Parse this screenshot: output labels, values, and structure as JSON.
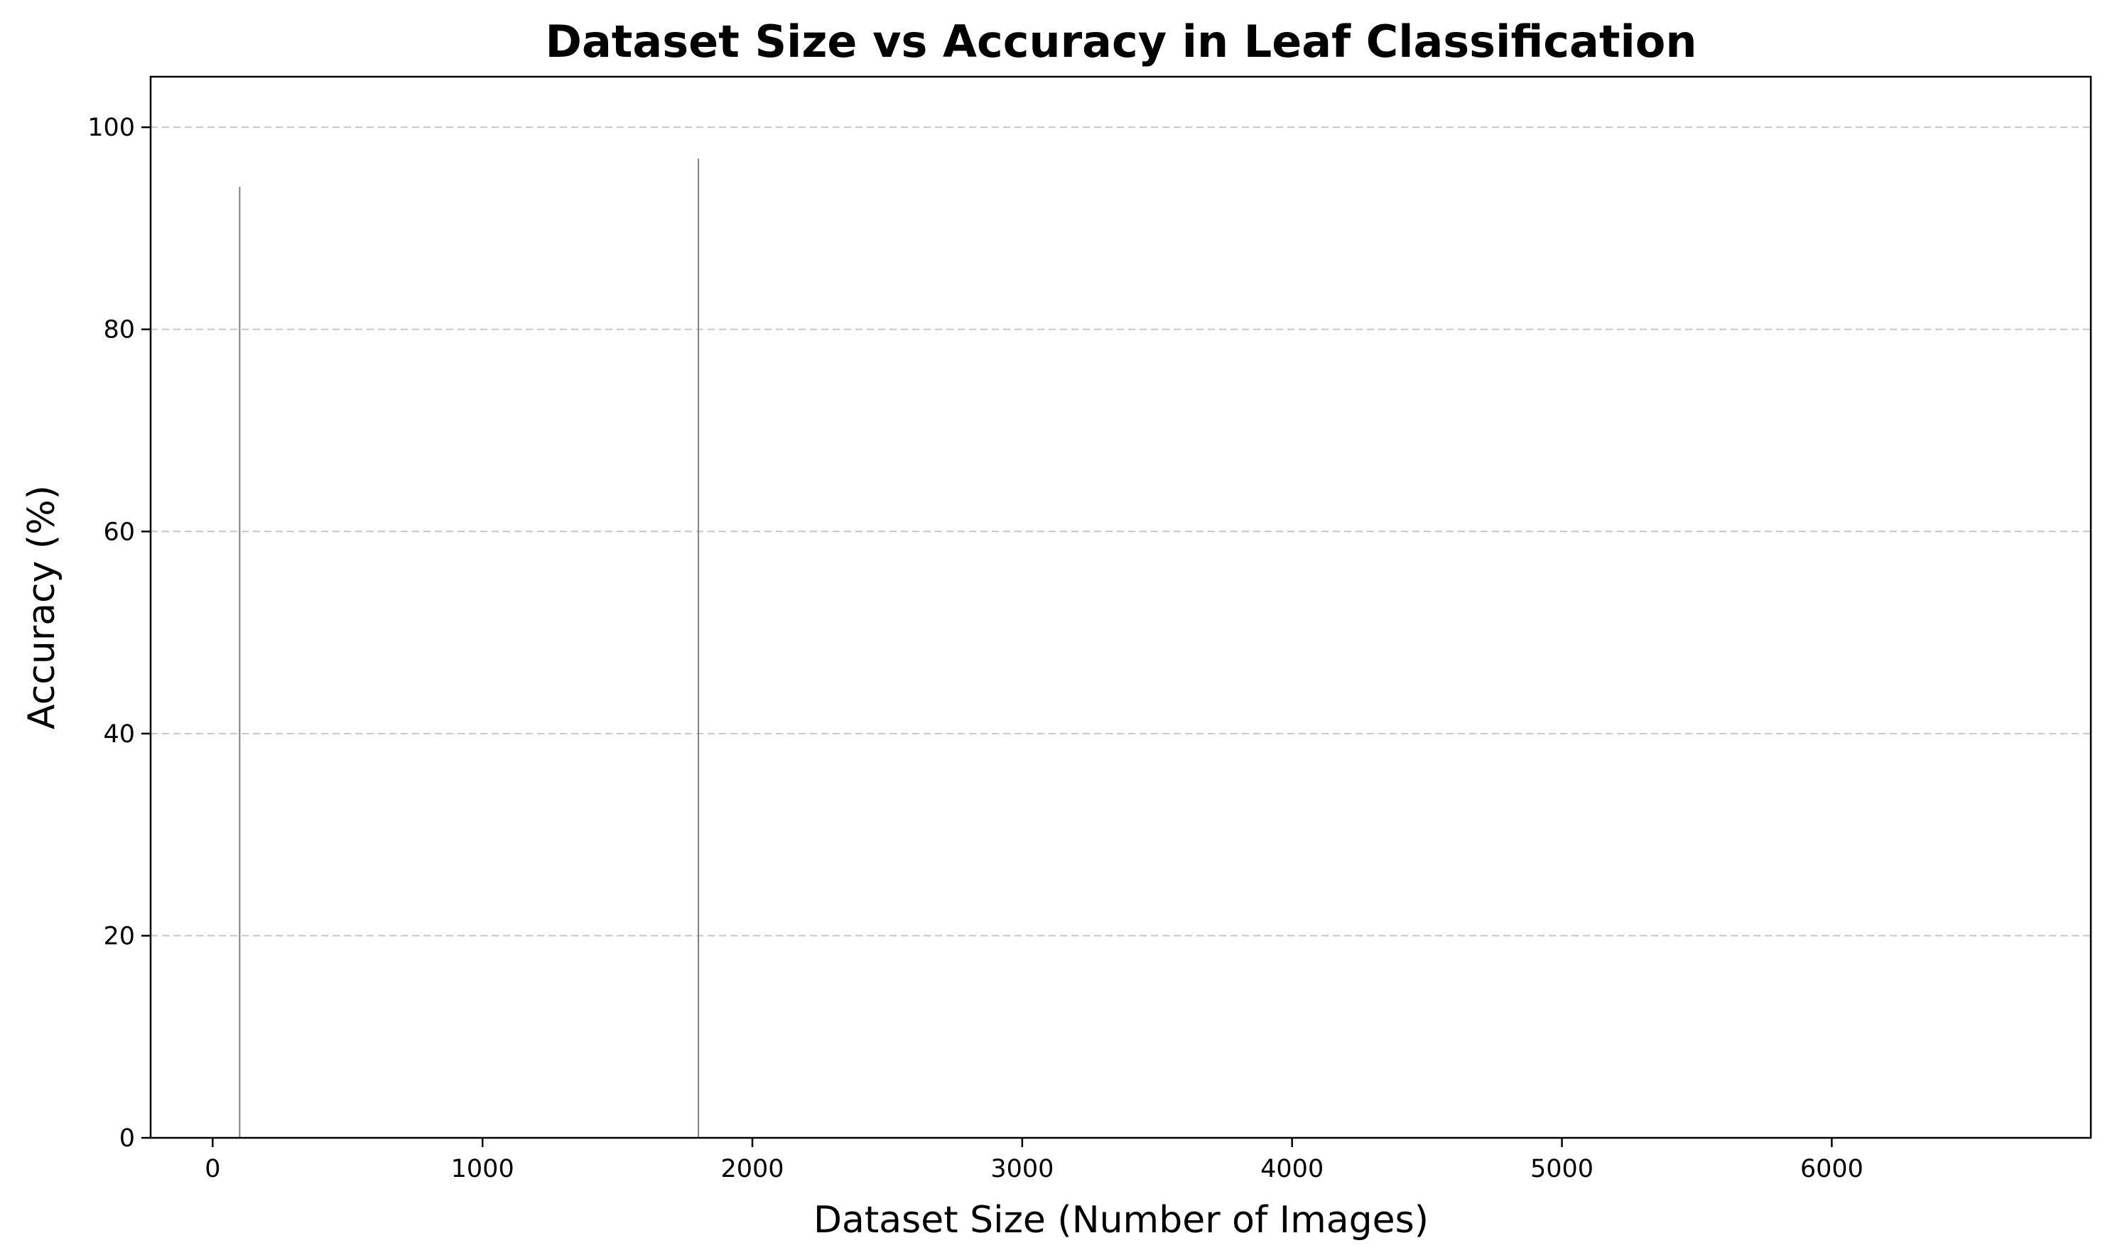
{
  "chart_data": {
    "type": "bar",
    "title": "Dataset Size vs Accuracy in Leaf Classification",
    "xlabel": "Dataset Size (Number of Images)",
    "ylabel": "Accuracy (%)",
    "x": [
      100,
      1800
    ],
    "values": [
      94.1,
      96.9
    ],
    "xlim": [
      -230,
      6960
    ],
    "ylim": [
      0,
      105
    ],
    "xticks": [
      "0",
      "1000",
      "2000",
      "3000",
      "4000",
      "5000",
      "6000"
    ],
    "yticks": [
      "0",
      "20",
      "40",
      "60",
      "80",
      "100"
    ],
    "grid": "y-dashed",
    "legend": "none",
    "colors": {
      "bar": "#808080",
      "grid": "#c8c8c8",
      "axes": "#000000"
    }
  }
}
